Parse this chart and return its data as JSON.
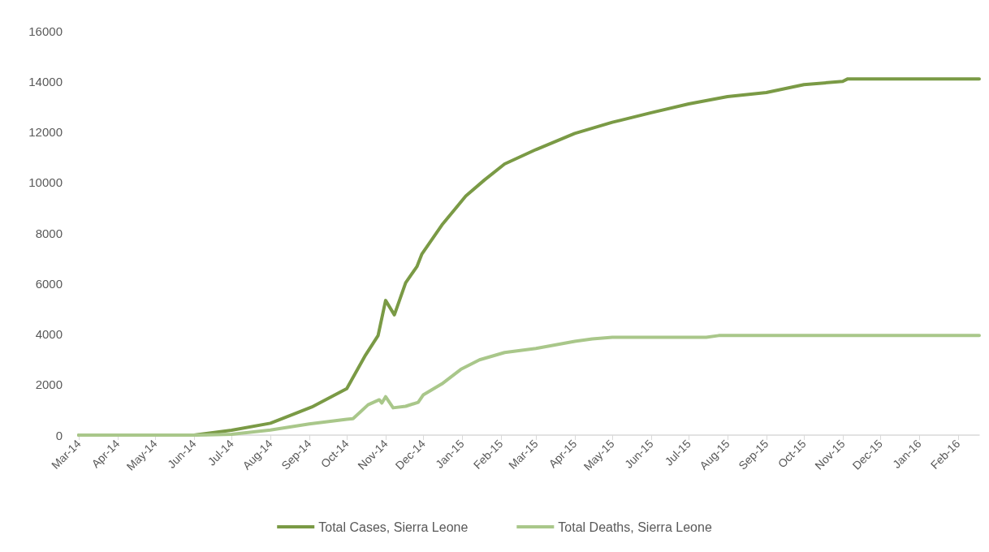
{
  "chart_data": {
    "type": "line",
    "x": [
      "2014-03-01",
      "2014-06-01",
      "2014-07-01",
      "2014-08-01",
      "2014-09-03",
      "2014-10-01",
      "2014-10-16",
      "2014-10-26",
      "2014-11-01",
      "2014-11-08",
      "2014-11-17",
      "2014-11-26",
      "2014-11-30",
      "2014-12-16",
      "2015-01-04",
      "2015-01-19",
      "2015-02-04",
      "2015-03-01",
      "2015-04-01",
      "2015-05-01",
      "2015-06-01",
      "2015-07-01",
      "2015-08-01",
      "2015-09-01",
      "2015-10-01",
      "2015-11-01",
      "2015-11-05",
      "2016-02-18"
    ],
    "series": [
      {
        "name": "Total Cases, Sierra Leone",
        "color": "#7a9a45",
        "values": [
          0,
          0,
          190,
          470,
          1110,
          1840,
          3170,
          3940,
          5330,
          4760,
          6030,
          6670,
          7170,
          8320,
          9460,
          10100,
          10730,
          11300,
          11940,
          12380,
          12760,
          13110,
          13400,
          13560,
          13870,
          14000,
          14100,
          14100
        ]
      },
      {
        "name": "Total Deaths, Sierra Leone",
        "x": [
          "2014-03-01",
          "2014-06-01",
          "2014-07-01",
          "2014-08-01",
          "2014-09-01",
          "2014-10-01",
          "2014-10-06",
          "2014-10-18",
          "2014-10-27",
          "2014-10-29",
          "2014-11-01",
          "2014-11-07",
          "2014-11-17",
          "2014-11-27",
          "2014-12-01",
          "2014-12-16",
          "2014-12-31",
          "2015-01-15",
          "2015-02-04",
          "2015-03-01",
          "2015-04-01",
          "2015-04-15",
          "2015-05-01",
          "2015-07-15",
          "2015-07-25",
          "2016-02-18"
        ],
        "color": "#a9c78a",
        "values": [
          0,
          0,
          30,
          200,
          440,
          630,
          650,
          1200,
          1400,
          1270,
          1520,
          1080,
          1140,
          1300,
          1590,
          2030,
          2600,
          2980,
          3270,
          3430,
          3710,
          3810,
          3870,
          3870,
          3940,
          3940
        ]
      }
    ],
    "xlim": [
      "2014-03-01",
      "2016-02-18"
    ],
    "xticks": [
      {
        "value": "2014-03-01",
        "label": "Mar-14"
      },
      {
        "value": "2014-04-01",
        "label": "Apr-14"
      },
      {
        "value": "2014-05-01",
        "label": "May-14"
      },
      {
        "value": "2014-06-01",
        "label": "Jun-14"
      },
      {
        "value": "2014-07-01",
        "label": "Jul-14"
      },
      {
        "value": "2014-08-01",
        "label": "Aug-14"
      },
      {
        "value": "2014-09-01",
        "label": "Sep-14"
      },
      {
        "value": "2014-10-01",
        "label": "Oct-14"
      },
      {
        "value": "2014-11-01",
        "label": "Nov-14"
      },
      {
        "value": "2014-12-01",
        "label": "Dec-14"
      },
      {
        "value": "2015-01-01",
        "label": "Jan-15"
      },
      {
        "value": "2015-02-01",
        "label": "Feb-15"
      },
      {
        "value": "2015-03-01",
        "label": "Mar-15"
      },
      {
        "value": "2015-04-01",
        "label": "Apr-15"
      },
      {
        "value": "2015-05-01",
        "label": "May-15"
      },
      {
        "value": "2015-06-01",
        "label": "Jun-15"
      },
      {
        "value": "2015-07-01",
        "label": "Jul-15"
      },
      {
        "value": "2015-08-01",
        "label": "Aug-15"
      },
      {
        "value": "2015-09-01",
        "label": "Sep-15"
      },
      {
        "value": "2015-10-01",
        "label": "Oct-15"
      },
      {
        "value": "2015-11-01",
        "label": "Nov-15"
      },
      {
        "value": "2015-12-01",
        "label": "Dec-15"
      },
      {
        "value": "2016-01-01",
        "label": "Jan-16"
      },
      {
        "value": "2016-02-01",
        "label": "Feb-16"
      }
    ],
    "ylim": [
      0,
      16000
    ],
    "yticks": [
      0,
      2000,
      4000,
      6000,
      8000,
      10000,
      12000,
      14000,
      16000
    ],
    "grid": false,
    "legend": "bottom",
    "marker": "none",
    "line_style": "solid"
  }
}
